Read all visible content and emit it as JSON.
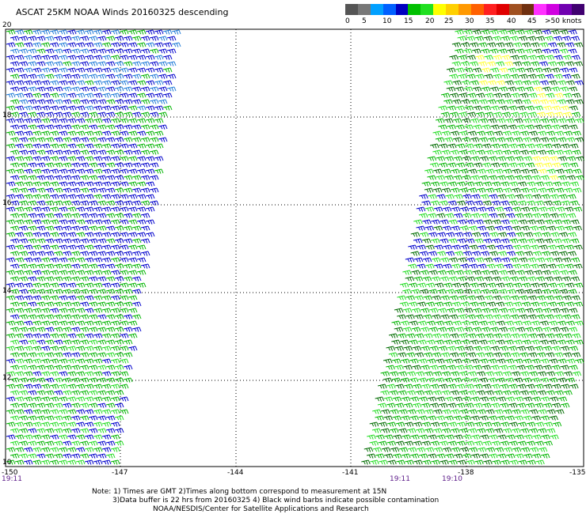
{
  "title": "ASCAT 25KM NOAA Winds 20160325 descending",
  "legend": {
    "colors": [
      "#555555",
      "#777777",
      "#00a0ff",
      "#0060ff",
      "#0000c0",
      "#00c000",
      "#20e020",
      "#ffff00",
      "#ffd000",
      "#ff9900",
      "#ff6000",
      "#ff2020",
      "#e00000",
      "#a05020",
      "#703010",
      "#ff30ff",
      "#d000e0",
      "#7000b0",
      "#400070"
    ],
    "labels": [
      "0",
      "5",
      "10",
      "15",
      "20",
      "25",
      "30",
      "35",
      "40",
      "45",
      ">50 knots"
    ]
  },
  "lat_labels": [
    "20",
    "18",
    "16",
    "14",
    "12",
    "10"
  ],
  "lon_labels": [
    "-150",
    "-147",
    "-144",
    "-141",
    "-138",
    "-135"
  ],
  "time_labels": [
    "19:11",
    "19:11",
    "19:10"
  ],
  "wind_colors": {
    "blue": "#0000cc",
    "light_blue": "#1e7ad8",
    "green": "#00b400",
    "light_green": "#22dd22",
    "dark_green": "#006c00",
    "yellow": "#ffff30"
  },
  "note": [
    "Note: 1) Times are GMT 2)Times along bottom correspond to measurement at 15N",
    "3)Data buffer is 22 hrs from 20160325 4) Black wind barbs indicate possible contamination",
    "NOAA/NESDIS/Center for Satellite Applications and Research"
  ]
}
